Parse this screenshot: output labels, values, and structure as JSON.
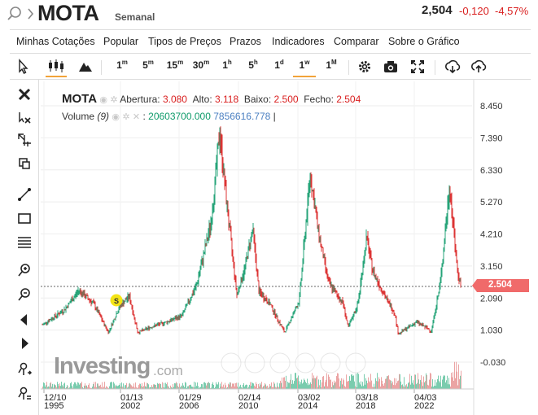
{
  "header": {
    "symbol": "MOTA",
    "period": "Semanal",
    "price": "2,504",
    "change": "-0,120",
    "change_pct": "-4,57%"
  },
  "menu": [
    "Minhas Cotações",
    "Popular",
    "Tipos de Preços",
    "Prazos",
    "Indicadores",
    "Comparar",
    "Sobre o Gráfico"
  ],
  "toolbar": {
    "intervals": [
      "1m",
      "5m",
      "15m",
      "30m",
      "1h",
      "5h",
      "1d",
      "1w",
      "1M"
    ],
    "active_interval": "1w",
    "icons": [
      "cursor-icon",
      "candlestick-icon",
      "mountain-icon",
      "gear-icon",
      "camera-icon",
      "fullscreen-icon",
      "download-icon",
      "upload-icon"
    ]
  },
  "left_tools": [
    "close-icon",
    "remove-drawings-icon",
    "crosshair-icon",
    "layers-icon",
    "trendline-icon",
    "rectangle-icon",
    "fibonacci-icon",
    "zoom-in-icon",
    "zoom-out-icon",
    "scroll-left-icon",
    "scroll-right-icon",
    "magnet-icon",
    "settings-drawing-icon"
  ],
  "legend": {
    "symbol": "MOTA",
    "open_label": "Abertura:",
    "open": "3.080",
    "high_label": "Alto:",
    "high": "3.118",
    "low_label": "Baixo:",
    "low": "2.500",
    "close_label": "Fecho:",
    "close": "2.504",
    "volume_label": "Volume",
    "volume_period": "(9)",
    "volume_value": "20603700.000",
    "volume_ma": "7856616.778"
  },
  "price_tag": "2.504",
  "logo": {
    "text": "Investing",
    "domain": ".com"
  },
  "marker_label": "S",
  "colors": {
    "up": "#0e9a6a",
    "down": "#d91e1e",
    "accent": "#f2a33a",
    "price_tag": "#f06a6a"
  },
  "chart_data": {
    "type": "candlestick",
    "y_ticks": [
      "8.450",
      "7.390",
      "6.330",
      "5.270",
      "4.210",
      "3.150",
      "2.090",
      "1.030",
      "-0.030"
    ],
    "x_ticks": [
      {
        "top": "12/10",
        "bottom": "1995"
      },
      {
        "top": "01/13",
        "bottom": "2002"
      },
      {
        "top": "01/29",
        "bottom": "2006"
      },
      {
        "top": "02/14",
        "bottom": "2010"
      },
      {
        "top": "03/02",
        "bottom": "2014"
      },
      {
        "top": "03/18",
        "bottom": "2018"
      },
      {
        "top": "04/03",
        "bottom": "2022"
      }
    ],
    "ylim": [
      -0.03,
      8.45
    ],
    "current_price": 2.504,
    "series": [
      {
        "date": "1995-12",
        "close": 1.2
      },
      {
        "date": "1997-06",
        "close": 1.7
      },
      {
        "date": "1998-06",
        "close": 2.35
      },
      {
        "date": "1999-06",
        "close": 1.9
      },
      {
        "date": "2000-06",
        "close": 0.95
      },
      {
        "date": "2001-03",
        "close": 1.8
      },
      {
        "date": "2001-11",
        "close": 2.15
      },
      {
        "date": "2002-06",
        "close": 0.95
      },
      {
        "date": "2003-06",
        "close": 1.15
      },
      {
        "date": "2004-06",
        "close": 1.3
      },
      {
        "date": "2005-06",
        "close": 1.5
      },
      {
        "date": "2006-06",
        "close": 2.5
      },
      {
        "date": "2007-06",
        "close": 4.6
      },
      {
        "date": "2008-01",
        "close": 7.6
      },
      {
        "date": "2008-06",
        "close": 5.5
      },
      {
        "date": "2009-03",
        "close": 2.2
      },
      {
        "date": "2009-09",
        "close": 3.0
      },
      {
        "date": "2010-04",
        "close": 4.4
      },
      {
        "date": "2010-09",
        "close": 2.3
      },
      {
        "date": "2011-06",
        "close": 1.9
      },
      {
        "date": "2012-06",
        "close": 0.95
      },
      {
        "date": "2013-06",
        "close": 2.0
      },
      {
        "date": "2014-03",
        "close": 6.2
      },
      {
        "date": "2014-10",
        "close": 4.2
      },
      {
        "date": "2015-06",
        "close": 2.6
      },
      {
        "date": "2016-06",
        "close": 1.9
      },
      {
        "date": "2016-10",
        "close": 1.1
      },
      {
        "date": "2017-06",
        "close": 1.9
      },
      {
        "date": "2018-01",
        "close": 4.1
      },
      {
        "date": "2018-06",
        "close": 3.0
      },
      {
        "date": "2019-06",
        "close": 2.0
      },
      {
        "date": "2019-12",
        "close": 1.6
      },
      {
        "date": "2020-03",
        "close": 0.9
      },
      {
        "date": "2021-06",
        "close": 1.3
      },
      {
        "date": "2022-06",
        "close": 1.0
      },
      {
        "date": "2023-01",
        "close": 2.5
      },
      {
        "date": "2023-09",
        "close": 5.8
      },
      {
        "date": "2024-03",
        "close": 3.1
      },
      {
        "date": "2024-06",
        "close": 2.504
      }
    ]
  }
}
